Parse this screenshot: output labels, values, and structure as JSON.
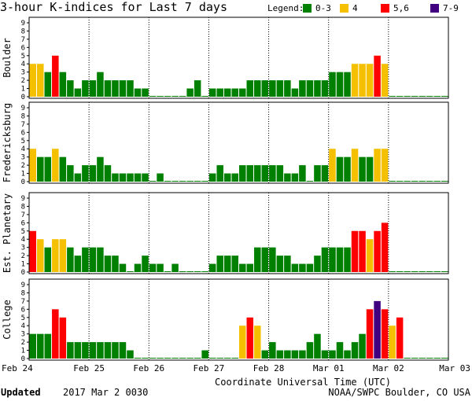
{
  "title": "3-hour K-indices for Last 7 days",
  "legend": {
    "label": "Legend:",
    "items": [
      {
        "label": "0-3",
        "color": "#008000"
      },
      {
        "label": "4",
        "color": "#f5c000"
      },
      {
        "label": "5,6",
        "color": "#ff0000"
      },
      {
        "label": "7-9",
        "color": "#400080"
      }
    ]
  },
  "footer": {
    "updated_label": "Updated",
    "updated_value": "2017 Mar  2 0030",
    "source": "NOAA/SWPC Boulder, CO USA"
  },
  "chart_data": {
    "type": "bar",
    "xlabel": "Coordinate Universal Time (UTC)",
    "x_ticks": [
      "Feb 24",
      "Feb 25",
      "Feb 26",
      "Feb 27",
      "Feb 28",
      "Mar 01",
      "Mar 02",
      "Mar 03"
    ],
    "y_ticks": [
      "0",
      "1",
      "2",
      "3",
      "4",
      "5",
      "6",
      "7",
      "8",
      "9"
    ],
    "ylim": [
      0,
      9
    ],
    "bars_per_day": 8,
    "color_thresholds": {
      "green": "0-3",
      "yellow": "4",
      "red": "5-6",
      "purple": "7-9"
    },
    "panels": [
      {
        "name": "Boulder",
        "values": [
          4,
          4,
          3,
          5,
          3,
          2,
          1,
          2,
          2,
          3,
          2,
          2,
          2,
          2,
          1,
          1,
          0,
          0,
          0,
          0,
          0,
          1,
          2,
          0,
          1,
          1,
          1,
          1,
          1,
          2,
          2,
          2,
          2,
          2,
          2,
          1,
          2,
          2,
          2,
          2,
          3,
          3,
          3,
          4,
          4,
          4,
          5,
          4,
          0,
          0,
          0,
          0,
          0,
          0,
          0,
          0
        ]
      },
      {
        "name": "Fredericksburg",
        "values": [
          4,
          3,
          3,
          4,
          3,
          2,
          1,
          2,
          2,
          3,
          2,
          1,
          1,
          1,
          1,
          1,
          0,
          1,
          0,
          0,
          0,
          0,
          0,
          0,
          1,
          2,
          1,
          1,
          2,
          2,
          2,
          2,
          2,
          2,
          1,
          1,
          2,
          0,
          2,
          2,
          4,
          3,
          3,
          4,
          3,
          3,
          4,
          4,
          0,
          0,
          0,
          0,
          0,
          0,
          0,
          0
        ]
      },
      {
        "name": "Est. Planetary",
        "values": [
          5,
          4,
          3,
          4,
          4,
          3,
          2,
          3,
          3,
          3,
          2,
          2,
          1,
          0,
          1,
          2,
          1,
          1,
          0,
          1,
          0,
          0,
          0,
          0,
          1,
          2,
          2,
          2,
          1,
          1,
          3,
          3,
          3,
          2,
          2,
          1,
          1,
          1,
          2,
          3,
          3,
          3,
          3,
          5,
          5,
          4,
          5,
          6,
          0,
          0,
          0,
          0,
          0,
          0,
          0,
          0
        ]
      },
      {
        "name": "College",
        "values": [
          3,
          3,
          3,
          6,
          5,
          2,
          2,
          2,
          2,
          2,
          2,
          2,
          2,
          1,
          0,
          0,
          0,
          0,
          0,
          0,
          0,
          0,
          0,
          1,
          0,
          0,
          0,
          0,
          4,
          5,
          4,
          1,
          2,
          1,
          1,
          1,
          1,
          2,
          3,
          1,
          1,
          2,
          1,
          2,
          3,
          6,
          7,
          6,
          4,
          5,
          0,
          0,
          0,
          0,
          0,
          0
        ]
      }
    ]
  }
}
